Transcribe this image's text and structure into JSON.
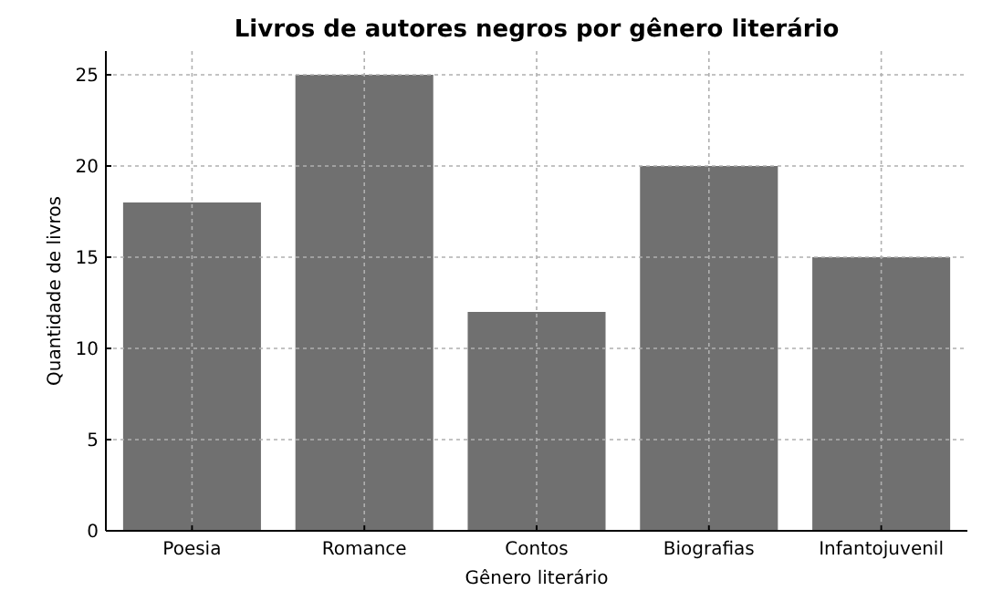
{
  "chart_data": {
    "type": "bar",
    "title": "Livros de autores negros por gênero literário",
    "xlabel": "Gênero literário",
    "ylabel": "Quantidade de livros",
    "categories": [
      "Poesia",
      "Romance",
      "Contos",
      "Biografias",
      "Infantojuvenil"
    ],
    "values": [
      18,
      25,
      12,
      20,
      15
    ],
    "color": "#707070",
    "ylim": [
      0,
      26.3
    ],
    "yticks": [
      0,
      5,
      10,
      15,
      20,
      25
    ],
    "grid": true
  }
}
